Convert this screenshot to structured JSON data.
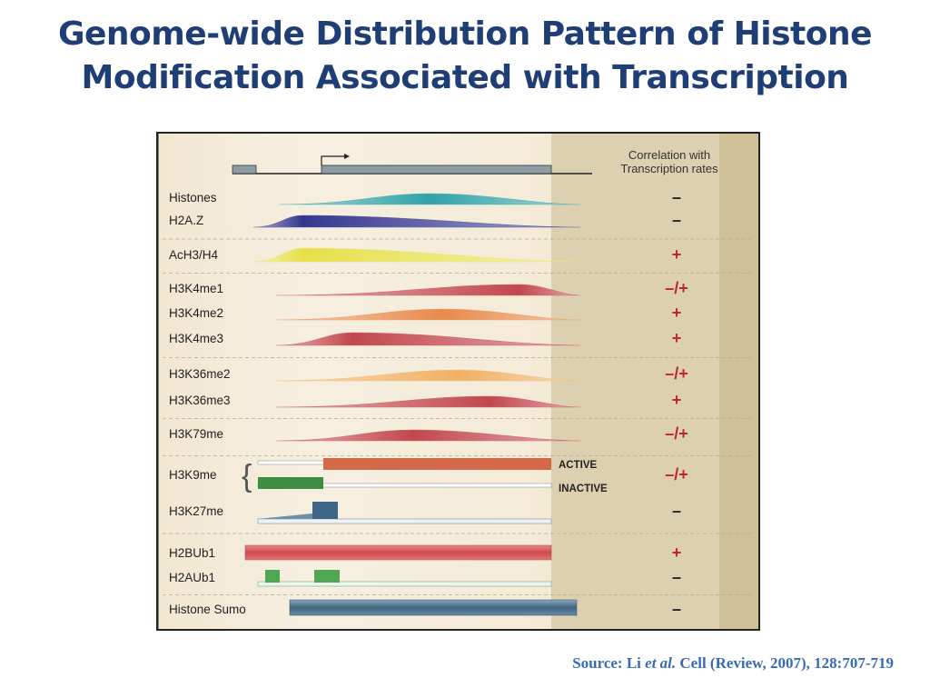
{
  "title": {
    "line1": "Genome-wide Distribution Pattern of Histone",
    "line2": "Modification Associated with Transcription"
  },
  "figure": {
    "header_line1": "Correlation with",
    "header_line2": "Transcription rates",
    "rows": [
      {
        "label": "Histones",
        "correlation": "–",
        "kind": "hump",
        "color": "#2fa3a8",
        "peak": 0.5,
        "start": 0.08,
        "end": 1.0,
        "height": 12,
        "group_end": false
      },
      {
        "label": "H2A.Z",
        "correlation": "–",
        "kind": "hump",
        "color": "#35378f",
        "peak": 0.15,
        "start": 0.0,
        "end": 1.0,
        "height": 13,
        "group_end": true
      },
      {
        "label": "AcH3/H4",
        "correlation": "+",
        "kind": "hump",
        "color": "#e6e04a",
        "peak": 0.15,
        "start": 0.0,
        "end": 1.0,
        "height": 15,
        "group_end": true
      },
      {
        "label": "H3K4me1",
        "correlation": "–/+",
        "kind": "hump",
        "color": "#c2474e",
        "peak": 0.8,
        "start": 0.07,
        "end": 1.0,
        "height": 12,
        "group_end": false
      },
      {
        "label": "H3K4me2",
        "correlation": "+",
        "kind": "hump",
        "color": "#e88a4a",
        "peak": 0.55,
        "start": 0.07,
        "end": 1.0,
        "height": 12,
        "group_end": false
      },
      {
        "label": "H3K4me3",
        "correlation": "+",
        "kind": "hump",
        "color": "#c2474e",
        "peak": 0.25,
        "start": 0.07,
        "end": 1.0,
        "height": 14,
        "group_end": true
      },
      {
        "label": "H3K36me2",
        "correlation": "–/+",
        "kind": "hump",
        "color": "#f0b062",
        "peak": 0.6,
        "start": 0.07,
        "end": 1.0,
        "height": 12,
        "group_end": false
      },
      {
        "label": "H3K36me3",
        "correlation": "+",
        "kind": "hump",
        "color": "#c2474e",
        "peak": 0.7,
        "start": 0.07,
        "end": 1.0,
        "height": 12,
        "group_end": true
      },
      {
        "label": "H3K79me",
        "correlation": "–/+",
        "kind": "hump",
        "color": "#c2474e",
        "peak": 0.45,
        "start": 0.07,
        "end": 1.0,
        "height": 12,
        "group_end": true
      },
      {
        "label": "H3K9me",
        "correlation": "–/+",
        "kind": "h3k9",
        "group_end": false
      },
      {
        "label": "H3K27me",
        "correlation": "–",
        "kind": "h3k27",
        "group_end": true
      },
      {
        "label": "H2BUb1",
        "correlation": "+",
        "kind": "h2bub",
        "group_end": false
      },
      {
        "label": "H2AUb1",
        "correlation": "–",
        "kind": "h2aub",
        "group_end": true
      },
      {
        "label": "Histone Sumo",
        "correlation": "–",
        "kind": "sumo",
        "group_end": false
      }
    ],
    "active_label": "ACTIVE",
    "inactive_label": "INACTIVE"
  },
  "source": {
    "prefix": "Source: Li ",
    "italic": "et al.",
    "suffix": " Cell (Review, 2007), 128:707-719"
  }
}
